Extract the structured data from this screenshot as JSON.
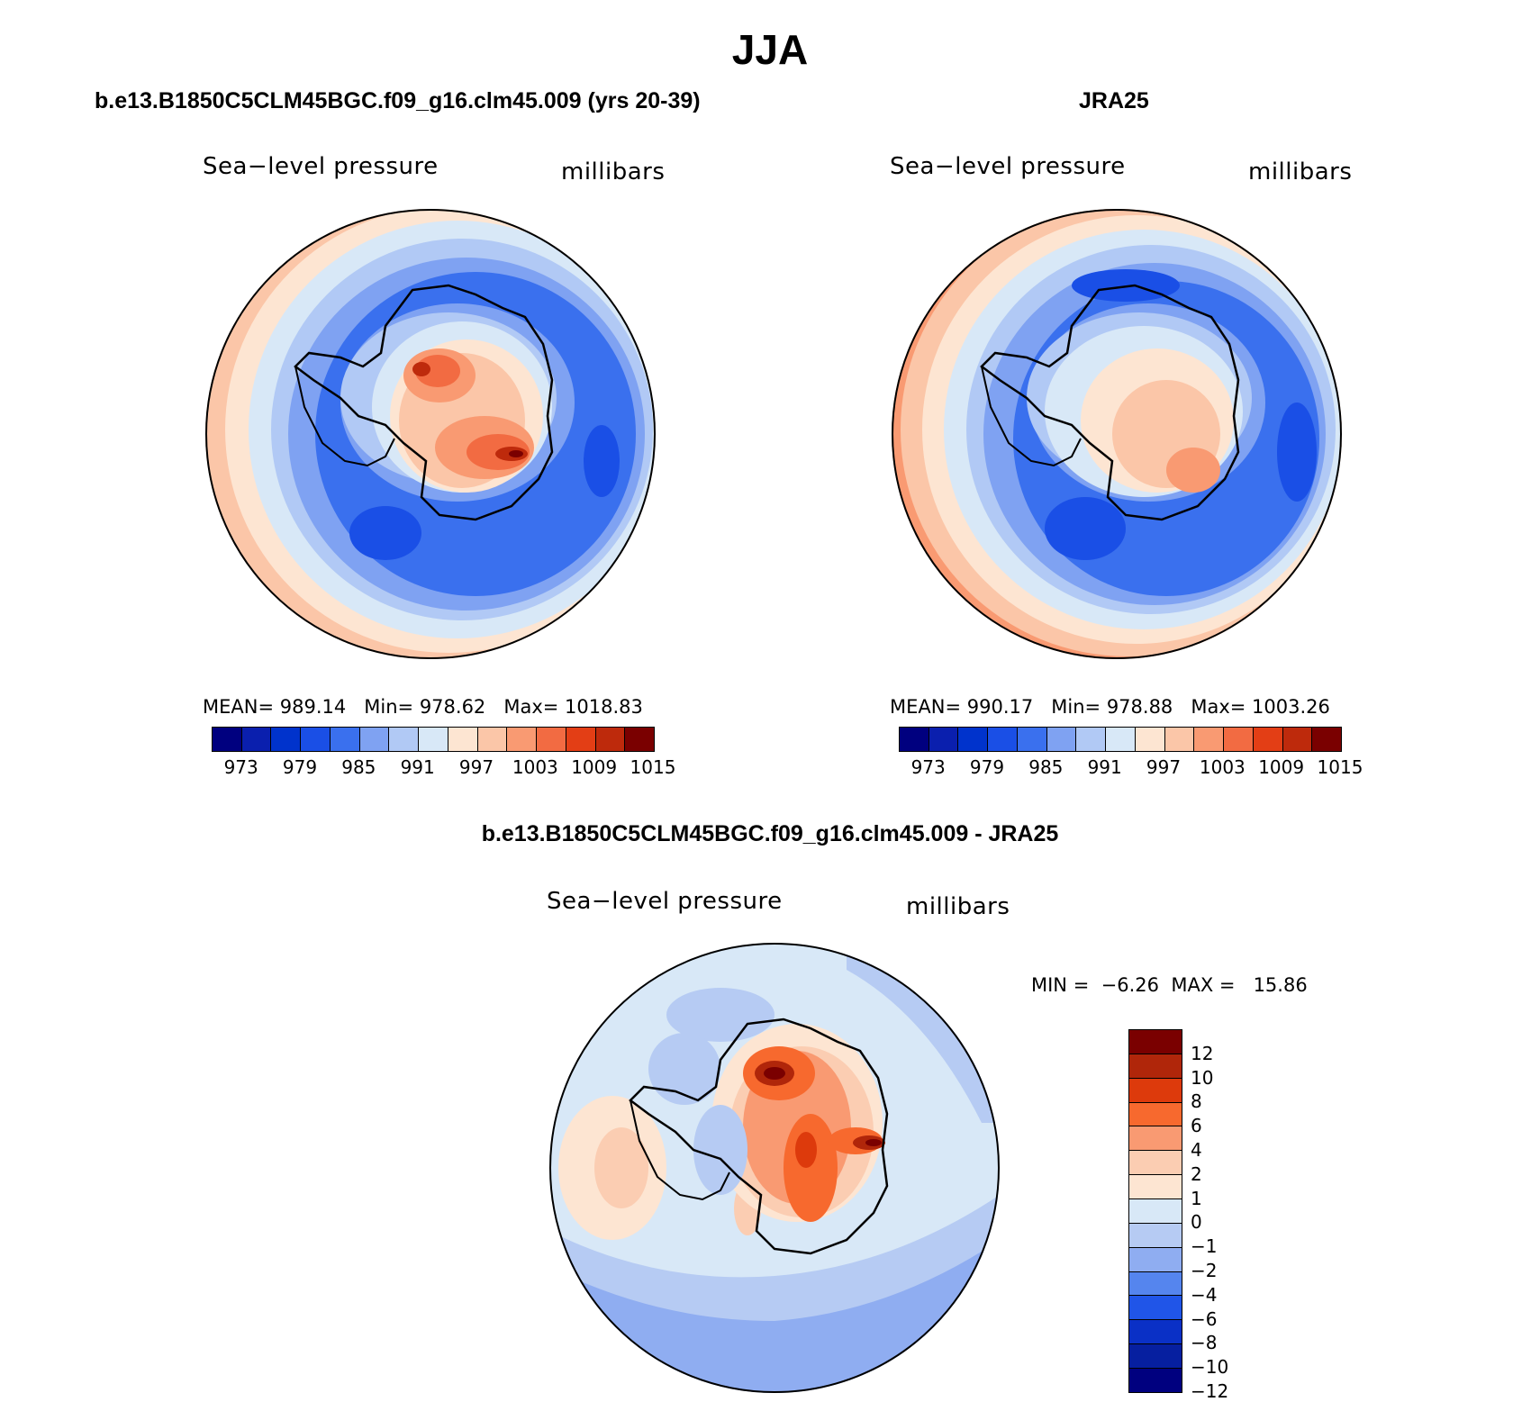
{
  "title": "JJA",
  "panels": [
    {
      "id": "model",
      "title": "b.e13.B1850C5CLM45BGC.f09_g16.clm45.009 (yrs 20-39)",
      "left_label": "Sea−level pressure",
      "right_label": "millibars",
      "stats": {
        "mean_label": "MEAN=",
        "mean": "989.14",
        "min_label": "Min=",
        "min": "978.62",
        "max_label": "Max=",
        "max": "1018.83"
      }
    },
    {
      "id": "obs",
      "title": "JRA25",
      "left_label": "Sea−level pressure",
      "right_label": "millibars",
      "stats": {
        "mean_label": "MEAN=",
        "mean": "990.17",
        "min_label": "Min=",
        "min": "978.88",
        "max_label": "Max=",
        "max": "1003.26"
      }
    },
    {
      "id": "diff",
      "title": "b.e13.B1850C5CLM45BGC.f09_g16.clm45.009 - JRA25",
      "left_label": "Sea−level pressure",
      "right_label": "millibars",
      "stats": {
        "min_label": "MIN =",
        "min": "−6.26",
        "max_label": "MAX =",
        "max": "15.86"
      }
    }
  ],
  "colorbar_abs": {
    "colors": [
      "#00007f",
      "#0a1fae",
      "#0033cc",
      "#1a4fe6",
      "#3a70ee",
      "#7fa2f2",
      "#b1c9f5",
      "#d8e8f7",
      "#fde5d2",
      "#fbc6a8",
      "#f99a72",
      "#f26b42",
      "#e33e15",
      "#be2a0c",
      "#7a0000"
    ],
    "tick_labels": [
      "973",
      "979",
      "985",
      "991",
      "997",
      "1003",
      "1009",
      "1015"
    ]
  },
  "colorbar_diff": {
    "colors": [
      "#7a0000",
      "#b0260a",
      "#dd3a0c",
      "#f7692e",
      "#f99a72",
      "#fbcdb2",
      "#fde5d2",
      "#d8e8f7",
      "#b6cbf3",
      "#8fadf1",
      "#5585ee",
      "#2055e8",
      "#0a30c6",
      "#061fa0",
      "#00007f"
    ],
    "tick_labels": [
      "12",
      "10",
      "8",
      "6",
      "4",
      "2",
      "1",
      "0",
      "−1",
      "−2",
      "−4",
      "−6",
      "−8",
      "−10",
      "−12"
    ]
  },
  "map_colors": {
    "ocean_light": "#d8e8f7",
    "ocean_mid": "#b1c9f5",
    "ocean_blue": "#7fa2f2",
    "ocean_deep": "#3a70ee",
    "ocean_deepest": "#1a4fe6",
    "warm_1": "#fde5d2",
    "warm_2": "#fbc6a8",
    "warm_3": "#f99a72",
    "warm_4": "#f26b42",
    "warm_5": "#be2a0c",
    "warm_6": "#7a0000"
  }
}
